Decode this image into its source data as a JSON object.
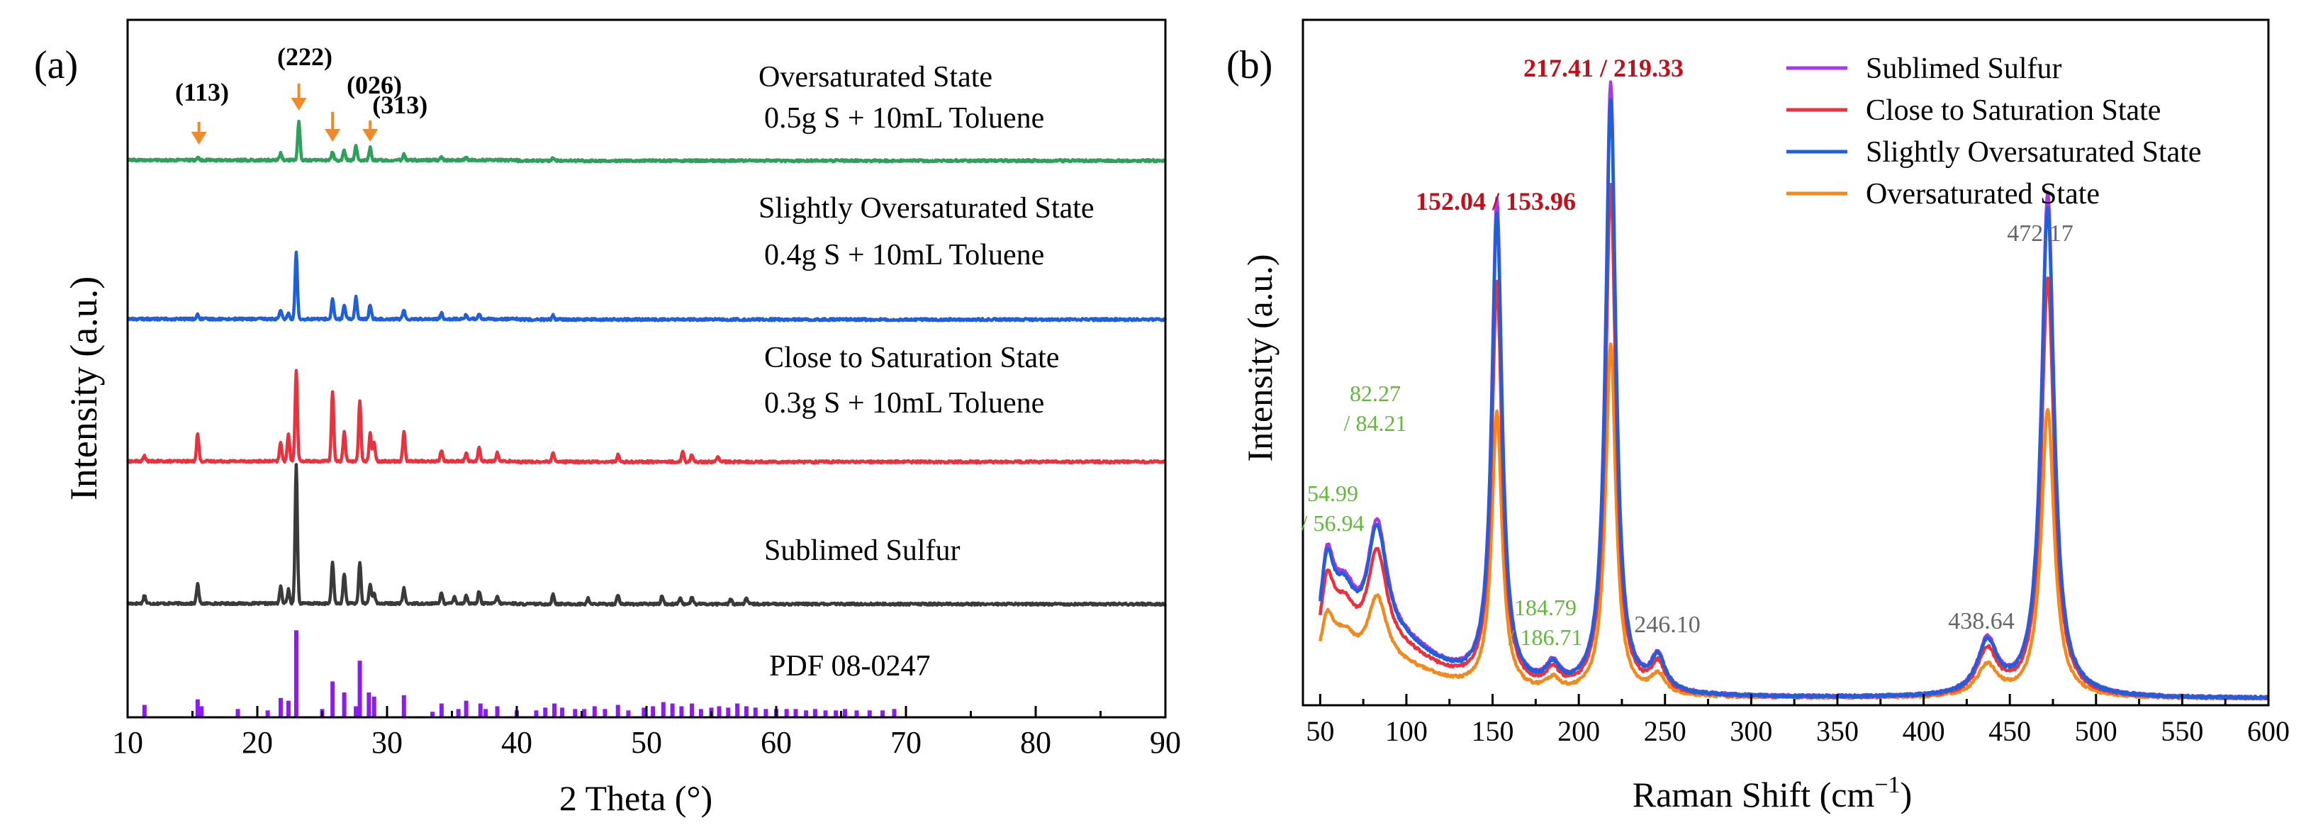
{
  "colors": {
    "green": "#2ea05a",
    "blue": "#1f5fd8",
    "red": "#e8333f",
    "black": "#3a3a3a",
    "purple": "#8a1bf2",
    "orange": "#f08a1e",
    "arrow": "#ee8a2a",
    "magenta": "#a33be6",
    "peak_red": "#c0101a",
    "peak_green": "#63b83a",
    "peak_gray": "#666666"
  },
  "chart_data": [
    {
      "panel_label": "(a)",
      "type": "line",
      "title": "",
      "xlabel": "2 Theta (°)",
      "ylabel": "Intensity (a.u.)",
      "xlim": [
        10,
        90
      ],
      "xticks": [
        10,
        20,
        30,
        40,
        50,
        60,
        70,
        80,
        90
      ],
      "grid": false,
      "ylim": [
        0,
        5.05
      ],
      "pdf": {
        "name": "PDF 08-0247",
        "color": "purple",
        "baseline": 0,
        "sticks": [
          [
            11.3,
            0.09
          ],
          [
            15.4,
            0.13
          ],
          [
            15.7,
            0.08
          ],
          [
            18.5,
            0.06
          ],
          [
            20.8,
            0.05
          ],
          [
            21.8,
            0.14
          ],
          [
            22.4,
            0.12
          ],
          [
            23.0,
            0.63
          ],
          [
            25.0,
            0.06
          ],
          [
            25.8,
            0.26
          ],
          [
            26.7,
            0.18
          ],
          [
            27.6,
            0.08
          ],
          [
            27.9,
            0.41
          ],
          [
            28.6,
            0.18
          ],
          [
            29.0,
            0.15
          ],
          [
            31.3,
            0.16
          ],
          [
            33.5,
            0.04
          ],
          [
            34.2,
            0.1
          ],
          [
            35.5,
            0.06
          ],
          [
            36.1,
            0.12
          ],
          [
            37.2,
            0.1
          ],
          [
            37.6,
            0.06
          ],
          [
            38.5,
            0.08
          ],
          [
            40.0,
            0.05
          ],
          [
            41.5,
            0.05
          ],
          [
            42.2,
            0.07
          ],
          [
            42.9,
            0.1
          ],
          [
            43.5,
            0.07
          ],
          [
            44.5,
            0.06
          ],
          [
            45.2,
            0.06
          ],
          [
            46.0,
            0.08
          ],
          [
            46.8,
            0.06
          ],
          [
            47.8,
            0.09
          ],
          [
            48.6,
            0.05
          ],
          [
            49.8,
            0.07
          ],
          [
            50.5,
            0.08
          ],
          [
            51.3,
            0.11
          ],
          [
            52.0,
            0.1
          ],
          [
            52.7,
            0.08
          ],
          [
            53.5,
            0.1
          ],
          [
            54.2,
            0.06
          ],
          [
            55.0,
            0.07
          ],
          [
            55.6,
            0.08
          ],
          [
            56.3,
            0.07
          ],
          [
            57.0,
            0.1
          ],
          [
            57.7,
            0.08
          ],
          [
            58.4,
            0.07
          ],
          [
            59.2,
            0.06
          ],
          [
            60.0,
            0.06
          ],
          [
            60.8,
            0.06
          ],
          [
            61.5,
            0.06
          ],
          [
            62.3,
            0.05
          ],
          [
            63.0,
            0.06
          ],
          [
            63.8,
            0.05
          ],
          [
            64.6,
            0.05
          ],
          [
            65.3,
            0.06
          ],
          [
            66.2,
            0.05
          ],
          [
            67.2,
            0.05
          ],
          [
            68.2,
            0.05
          ],
          [
            69.1,
            0.06
          ]
        ]
      },
      "series": [
        {
          "name": "Sublimed Sulfur",
          "color": "black",
          "offset": 0.82,
          "peaks": [
            [
              11.3,
              0.06
            ],
            [
              15.4,
              0.14
            ],
            [
              21.8,
              0.12
            ],
            [
              22.4,
              0.1
            ],
            [
              23.0,
              1.0
            ],
            [
              25.8,
              0.3
            ],
            [
              26.7,
              0.22
            ],
            [
              27.9,
              0.3
            ],
            [
              28.7,
              0.14
            ],
            [
              29.0,
              0.08
            ],
            [
              31.3,
              0.11
            ],
            [
              34.2,
              0.08
            ],
            [
              35.2,
              0.05
            ],
            [
              36.1,
              0.06
            ],
            [
              37.1,
              0.09
            ],
            [
              38.5,
              0.05
            ],
            [
              42.8,
              0.07
            ],
            [
              45.5,
              0.04
            ],
            [
              47.8,
              0.07
            ],
            [
              51.2,
              0.06
            ],
            [
              52.6,
              0.05
            ],
            [
              53.5,
              0.05
            ],
            [
              56.5,
              0.04
            ],
            [
              57.7,
              0.04
            ]
          ],
          "labels": [
            "Sublimed Sulfur"
          ]
        },
        {
          "name": "Close to Saturation State",
          "color": "red",
          "offset": 1.85,
          "peaks": [
            [
              11.3,
              0.04
            ],
            [
              15.4,
              0.2
            ],
            [
              21.8,
              0.14
            ],
            [
              22.4,
              0.2
            ],
            [
              23.0,
              0.66
            ],
            [
              25.8,
              0.5
            ],
            [
              26.7,
              0.22
            ],
            [
              27.9,
              0.44
            ],
            [
              28.7,
              0.2
            ],
            [
              29.0,
              0.14
            ],
            [
              31.3,
              0.22
            ],
            [
              34.2,
              0.08
            ],
            [
              36.1,
              0.06
            ],
            [
              37.1,
              0.1
            ],
            [
              38.5,
              0.06
            ],
            [
              42.8,
              0.06
            ],
            [
              47.8,
              0.05
            ],
            [
              52.8,
              0.08
            ],
            [
              53.5,
              0.05
            ],
            [
              55.5,
              0.04
            ]
          ],
          "labels": [
            "Close to Saturation State",
            "0.3g S + 10mL Toluene"
          ]
        },
        {
          "name": "Slightly Oversaturated State",
          "color": "blue",
          "offset": 2.88,
          "peaks": [
            [
              15.4,
              0.03
            ],
            [
              21.8,
              0.06
            ],
            [
              22.4,
              0.04
            ],
            [
              23.0,
              0.48
            ],
            [
              25.8,
              0.14
            ],
            [
              26.7,
              0.1
            ],
            [
              27.6,
              0.16
            ],
            [
              28.7,
              0.1
            ],
            [
              31.3,
              0.06
            ],
            [
              34.2,
              0.04
            ],
            [
              36.1,
              0.03
            ],
            [
              37.1,
              0.04
            ],
            [
              42.8,
              0.03
            ]
          ],
          "labels": [
            "Slightly Oversaturated State",
            "0.4g S + 10mL Toluene"
          ]
        },
        {
          "name": "Oversaturated State",
          "color": "green",
          "offset": 4.03,
          "peaks": [
            [
              15.4,
              0.02
            ],
            [
              21.8,
              0.05
            ],
            [
              23.2,
              0.28
            ],
            [
              25.8,
              0.06
            ],
            [
              26.7,
              0.07
            ],
            [
              27.6,
              0.1
            ],
            [
              28.7,
              0.09
            ],
            [
              31.3,
              0.04
            ],
            [
              34.2,
              0.02
            ],
            [
              36.1,
              0.02
            ],
            [
              42.8,
              0.02
            ]
          ],
          "labels": [
            "Oversaturated State",
            "0.5g S + 10mL Toluene"
          ]
        }
      ],
      "annotations": [
        {
          "text": "(113)",
          "x": 15.5
        },
        {
          "text": "(222)",
          "x": 23.2
        },
        {
          "text": "(026)",
          "x": 25.8
        },
        {
          "text": "(313)",
          "x": 28.7
        }
      ]
    },
    {
      "panel_label": "(b)",
      "type": "line",
      "title": "",
      "xlabel": "Raman Shift (cm",
      "xlabel_sup": "−1",
      "xlabel_close": ")",
      "ylabel": "Intensity (a.u.)",
      "xlim": [
        40,
        600
      ],
      "xticks": [
        50,
        100,
        150,
        200,
        250,
        300,
        350,
        400,
        450,
        500,
        550,
        600
      ],
      "ylim": [
        0,
        1.03
      ],
      "grid": false,
      "legend": {
        "position": "top-right"
      },
      "peaks_cm": [
        [
          54,
          5,
          0.55
        ],
        [
          64,
          9,
          0.4
        ],
        [
          83,
          7,
          0.7
        ],
        [
          98,
          30,
          0.25
        ],
        [
          152.5,
          3.6,
          2.7
        ],
        [
          185,
          5,
          0.12
        ],
        [
          218.5,
          3.6,
          3.4
        ],
        [
          246,
          5,
          0.19
        ],
        [
          437,
          7,
          0.3
        ],
        [
          472,
          4.5,
          2.8
        ]
      ],
      "series": [
        {
          "name": "Sublimed Sulfur",
          "color": "magenta",
          "scale": 0.27
        },
        {
          "name": "Close to Saturation State",
          "color": "red",
          "scale": 0.225
        },
        {
          "name": "Slightly Oversaturated State",
          "color": "blue",
          "scale": 0.262
        },
        {
          "name": "Oversaturated State",
          "color": "orange",
          "scale": 0.155
        }
      ],
      "peak_labels": [
        {
          "lines": [
            "152.04 / 153.96"
          ],
          "color": "peak_red",
          "bold": true
        },
        {
          "lines": [
            "217.41 / 219.33"
          ],
          "color": "peak_red",
          "bold": true
        },
        {
          "lines": [
            "82.27",
            "/ 84.21"
          ],
          "color": "peak_green",
          "bold": false
        },
        {
          "lines": [
            "54.99",
            "/ 56.94"
          ],
          "color": "peak_green",
          "bold": false
        },
        {
          "lines": [
            "184.79",
            "/ 186.71"
          ],
          "color": "peak_green",
          "bold": false
        },
        {
          "lines": [
            "246.10"
          ],
          "color": "peak_gray",
          "bold": false
        },
        {
          "lines": [
            "438.64"
          ],
          "color": "peak_gray",
          "bold": false
        },
        {
          "lines": [
            "472.17"
          ],
          "color": "peak_gray",
          "bold": false
        }
      ]
    }
  ]
}
